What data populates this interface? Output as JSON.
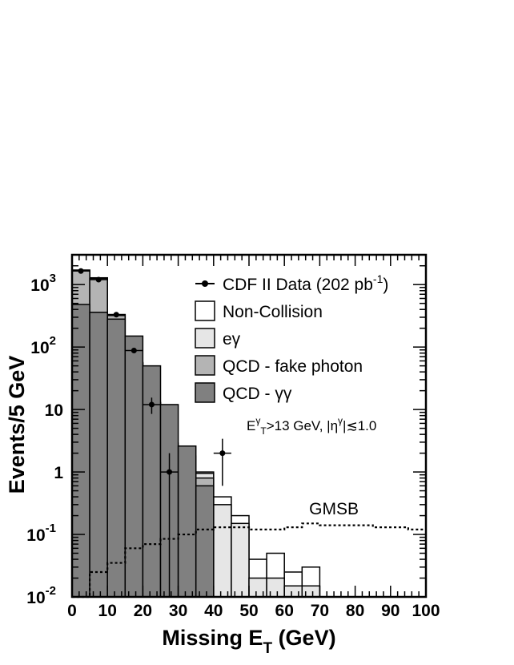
{
  "chart_data": {
    "type": "histogram-stacked",
    "x_bins": [
      0,
      5,
      10,
      15,
      20,
      25,
      30,
      35,
      40,
      45,
      50,
      55,
      60,
      65,
      70,
      75,
      80,
      85,
      90,
      95,
      100
    ],
    "xlim": [
      0,
      100
    ],
    "ylim": [
      0.01,
      3000
    ],
    "yscale": "log",
    "xticks": [
      "0",
      "10",
      "20",
      "30",
      "40",
      "50",
      "60",
      "70",
      "80",
      "90",
      "100"
    ],
    "yticks": [
      {
        "base": "10",
        "exp": "-2",
        "value": 0.01
      },
      {
        "base": "10",
        "exp": "-1",
        "value": 0.1
      },
      {
        "base": "1",
        "exp": "",
        "value": 1
      },
      {
        "base": "10",
        "exp": "",
        "value": 10
      },
      {
        "base": "10",
        "exp": "2",
        "value": 100
      },
      {
        "base": "10",
        "exp": "3",
        "value": 1000
      }
    ],
    "xlabel": {
      "main": "Missing E",
      "sub": "T",
      "unit": " (GeV)"
    },
    "ylabel": "Events/5 GeV",
    "legend_position": "top-right",
    "stack_colors": {
      "qcd_gg": "#808080",
      "fake": "#b4b4b4",
      "egamma": "#e6e6e6",
      "noncoll": "#ffffff"
    },
    "stack": [
      {
        "name": "QCD - γγ",
        "values": [
          480,
          360,
          280,
          150,
          50,
          12,
          2.6,
          0.6,
          0.01,
          0.01,
          0.01,
          0.01,
          0.01,
          0.01
        ]
      },
      {
        "name": "QCD - fake photon",
        "values": [
          1650,
          1250,
          320,
          55,
          12,
          2.6,
          1.5,
          0.8,
          0.01,
          0.01,
          0.01,
          0.01,
          0.01,
          0.01
        ]
      },
      {
        "name": "eγ",
        "values": [
          1700,
          1280,
          330,
          56,
          12.8,
          2.8,
          1.75,
          0.95,
          0.3,
          0.15,
          0.02,
          0.02,
          0.015,
          0.015
        ]
      },
      {
        "name": "Non-Collision",
        "values": [
          1710,
          1285,
          332,
          57,
          13,
          2.9,
          1.8,
          1.0,
          0.4,
          0.2,
          0.04,
          0.05,
          0.025,
          0.03
        ]
      }
    ],
    "data_points": {
      "name": "CDF II Data (202 pb",
      "name_sup": "-1",
      "name_close": ")",
      "points": [
        {
          "x": 2.5,
          "y": 1650,
          "err": 0
        },
        {
          "x": 7.5,
          "y": 1200,
          "err": 0
        },
        {
          "x": 12.5,
          "y": 330,
          "err": 0
        },
        {
          "x": 17.5,
          "y": 88,
          "err": 0
        },
        {
          "x": 22.5,
          "y": 12,
          "err": 3.5
        },
        {
          "x": 27.5,
          "y": 1,
          "err": 1
        },
        {
          "x": 42.5,
          "y": 2,
          "err": 1.4
        }
      ]
    },
    "gmsb": {
      "name": "GMSB",
      "values": [
        0.01,
        0.025,
        0.035,
        0.06,
        0.07,
        0.085,
        0.1,
        0.12,
        0.13,
        0.13,
        0.12,
        0.12,
        0.13,
        0.15,
        0.14,
        0.14,
        0.14,
        0.13,
        0.13,
        0.12
      ]
    },
    "legend": [
      {
        "key": "data",
        "label": "CDF II Data (202 pb",
        "sup": "-1",
        "close": ")"
      },
      {
        "key": "noncoll",
        "label": "Non-Collision"
      },
      {
        "key": "egamma",
        "label": "eγ"
      },
      {
        "key": "fake",
        "label": "QCD - fake photon"
      },
      {
        "key": "qcd_gg",
        "label": "QCD - γγ"
      }
    ],
    "annotation": {
      "e": "E",
      "sup": "γ",
      "sub": "T",
      "rest": ">13 GeV, |η",
      "eta_sup": "γ",
      "rest2": "|≲1.0"
    }
  }
}
